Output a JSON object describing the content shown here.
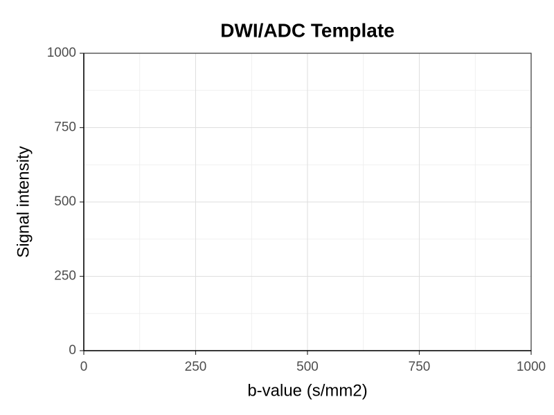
{
  "chart_data": {
    "type": "line",
    "title": "DWI/ADC Template",
    "xlabel": "b-value (s/mm2)",
    "ylabel": "Signal intensity",
    "series": [],
    "xlim": [
      0,
      1000
    ],
    "ylim": [
      0,
      1000
    ],
    "xticks": [
      0,
      250,
      500,
      750,
      1000
    ],
    "yticks": [
      0,
      250,
      500,
      750,
      1000
    ],
    "xminorticks": [
      125,
      375,
      625,
      875
    ],
    "yminorticks": [
      125,
      375,
      625,
      875
    ],
    "grid": true
  }
}
